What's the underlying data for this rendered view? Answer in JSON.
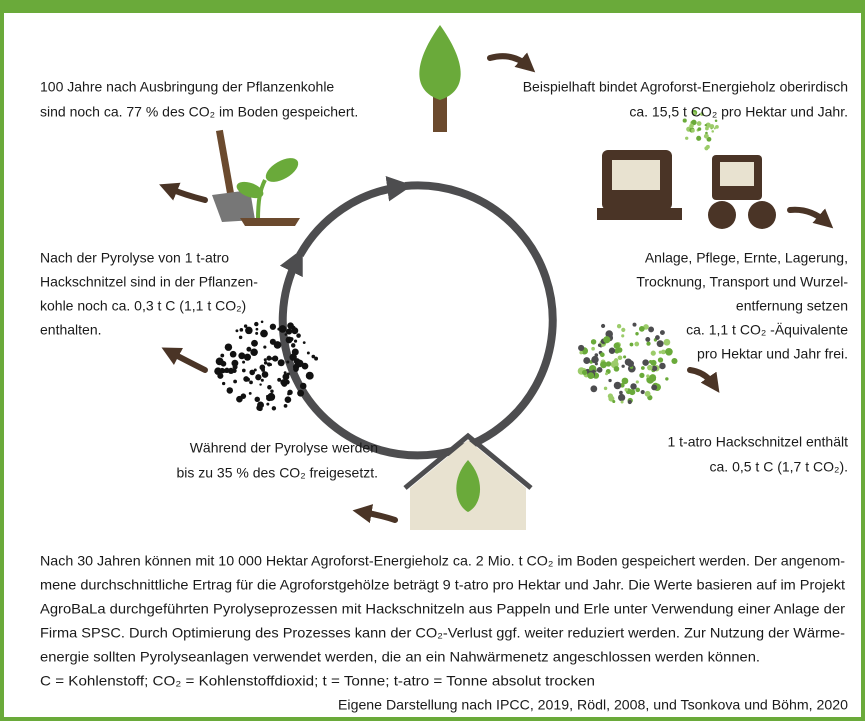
{
  "annotations": [
    {
      "lines": [
        "100 Jahre nach Ausbringung der Pflanzenkohle",
        "sind noch ca. 77 % des CO₂ im Boden gespeichert."
      ]
    },
    {
      "lines": [
        "Beispielhaft bindet Agroforst-Energieholz oberirdisch",
        "ca. 15,5 t CO₂ pro Hektar und Jahr."
      ]
    },
    {
      "lines": [
        "Anlage, Pflege, Ernte, Lagerung,",
        "Trocknung, Transport und Wurzel-",
        "entfernung setzen",
        "ca. 1,1 t CO₂ -Äquivalente",
        "pro Hektar und Jahr frei."
      ]
    },
    {
      "lines": [
        "1 t-atro Hackschnitzel enthält",
        "ca. 0,5 t C (1,7 t CO₂)."
      ]
    },
    {
      "lines": [
        "Während der Pyrolyse werden",
        "bis zu 35 % des CO₂ freigesetzt."
      ]
    },
    {
      "lines": [
        "Nach der Pyrolyse von 1 t-atro",
        "Hackschnitzel sind in der Pflanzen-",
        "kohle noch ca. 0,3 t C (1,1 t CO₂)",
        "enthalten."
      ]
    }
  ],
  "footer": {
    "paragraph": [
      "Nach 30 Jahren können mit 10 000 Hektar Agroforst-Energieholz ca. 2 Mio. t CO₂ im Boden gespeichert werden. Der angenom-",
      "mene durchschnittliche Ertrag für die Agroforstgehölze beträgt 9 t-atro pro Hektar und Jahr. Die Werte basieren auf im Projekt",
      "AgroBaLa durchgeführten Pyrolyseprozessen mit Hackschnitzeln aus Pappeln und Erle unter Verwendung einer Anlage der",
      "Firma SPSC. Durch Optimierung des Prozesses kann der CO₂-Verlust ggf. weiter reduziert werden. Zur Nutzung der Wärme-",
      "energie sollten Pyrolyseanlagen verwendet werden, die an ein Nahwärmenetz angeschlossen werden können."
    ],
    "abbreviations": "C = Kohlenstoff; CO₂ = Kohlenstoffdioxid; t = Tonne; t-atro = Tonne absolut trocken",
    "source": "Eigene Darstellung nach IPCC, 2019, Rödl, 2008, und Tsonkova und Böhm, 2020"
  }
}
